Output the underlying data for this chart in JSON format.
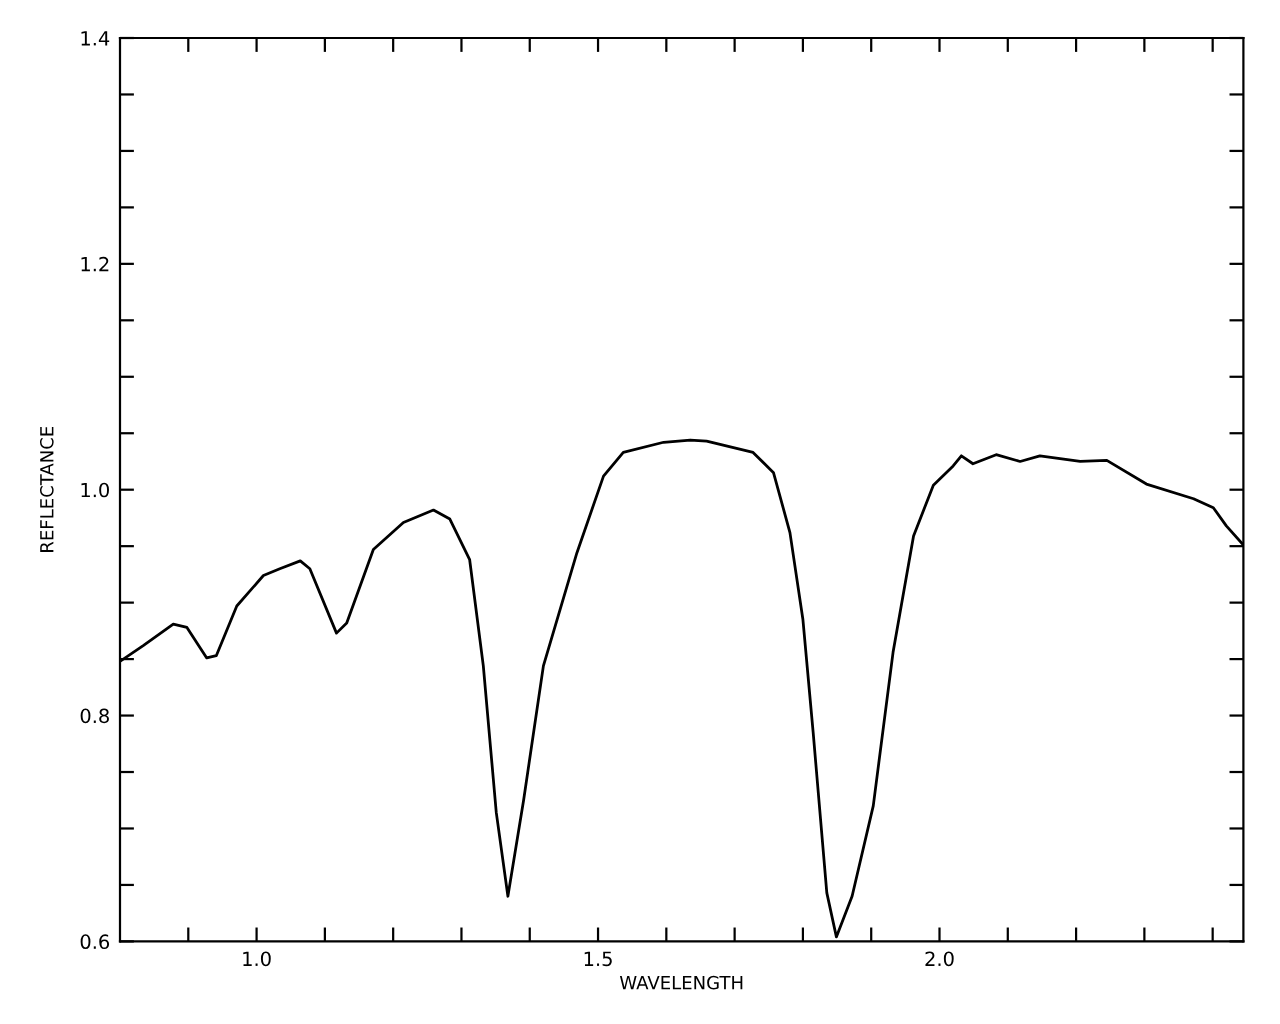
{
  "chart_data": {
    "type": "line",
    "xlabel": "WAVELENGTH",
    "ylabel": "REFLECTANCE",
    "x": [
      0.8,
      0.834,
      0.878,
      0.898,
      0.927,
      0.941,
      0.971,
      1.01,
      1.034,
      1.064,
      1.078,
      1.117,
      1.132,
      1.171,
      1.215,
      1.259,
      1.283,
      1.312,
      1.332,
      1.351,
      1.368,
      1.391,
      1.42,
      1.469,
      1.508,
      1.537,
      1.596,
      1.635,
      1.659,
      1.727,
      1.757,
      1.781,
      1.8,
      1.815,
      1.835,
      1.849,
      1.872,
      1.903,
      1.932,
      1.962,
      1.991,
      2.02,
      2.032,
      2.049,
      2.083,
      2.118,
      2.147,
      2.206,
      2.245,
      2.303,
      2.372,
      2.401,
      2.42,
      2.445
    ],
    "series": [
      {
        "color": "#000000",
        "values": [
          0.848,
          0.862,
          0.881,
          0.878,
          0.851,
          0.853,
          0.897,
          0.924,
          0.93,
          0.937,
          0.93,
          0.873,
          0.882,
          0.947,
          0.971,
          0.982,
          0.974,
          0.938,
          0.844,
          0.714,
          0.64,
          0.725,
          0.844,
          0.944,
          1.012,
          1.033,
          1.042,
          1.044,
          1.043,
          1.033,
          1.015,
          0.962,
          0.885,
          0.785,
          0.643,
          0.604,
          0.64,
          0.72,
          0.856,
          0.959,
          1.004,
          1.021,
          1.03,
          1.023,
          1.031,
          1.025,
          1.03,
          1.025,
          1.026,
          1.005,
          0.992,
          0.984,
          0.968,
          0.951
        ]
      }
    ],
    "xlim": [
      0.8,
      2.445
    ],
    "xticks": [
      {
        "value": 0.9,
        "label": null
      },
      {
        "value": 1.0,
        "label": "1.0"
      },
      {
        "value": 1.1,
        "label": null
      },
      {
        "value": 1.2,
        "label": null
      },
      {
        "value": 1.3,
        "label": null
      },
      {
        "value": 1.4,
        "label": null
      },
      1.5,
      {
        "value": 1.6,
        "label": null
      },
      {
        "value": 1.7,
        "label": null
      },
      {
        "value": 1.8,
        "label": null
      },
      {
        "value": 1.9,
        "label": null
      },
      {
        "value": 2.0,
        "label": "2.0"
      },
      {
        "value": 2.1,
        "label": null
      },
      {
        "value": 2.2,
        "label": null
      },
      {
        "value": 2.3,
        "label": null
      },
      {
        "value": 2.4,
        "label": null
      }
    ],
    "ylim": [
      0.6,
      1.4
    ],
    "yticks": [
      0.6,
      {
        "value": 0.65,
        "label": null
      },
      {
        "value": 0.7,
        "label": null
      },
      {
        "value": 0.75,
        "label": null
      },
      0.8,
      {
        "value": 0.85,
        "label": null
      },
      {
        "value": 0.9,
        "label": null
      },
      {
        "value": 0.95,
        "label": null
      },
      {
        "value": 1.0,
        "label": "1.0"
      },
      {
        "value": 1.05,
        "label": null
      },
      {
        "value": 1.1,
        "label": null
      },
      {
        "value": 1.15,
        "label": null
      },
      1.2,
      {
        "value": 1.25,
        "label": null
      },
      {
        "value": 1.3,
        "label": null
      },
      {
        "value": 1.35,
        "label": null
      },
      1.4
    ],
    "grid": false,
    "legend": false
  }
}
